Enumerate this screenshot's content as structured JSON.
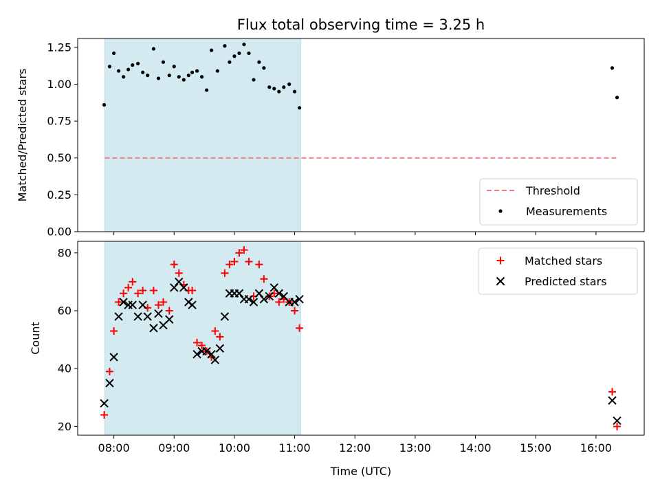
{
  "chart_data": [
    {
      "type": "scatter",
      "title": "Flux total observing time = 3.25 h",
      "xlabel": "",
      "ylabel": "Matched/Predicted stars",
      "ylim": [
        0,
        1.31
      ],
      "yticks": [
        "0.00",
        "0.25",
        "0.50",
        "0.75",
        "1.00",
        "1.25"
      ],
      "xlim_hours": [
        7.4,
        16.8
      ],
      "shaded_range_hours": [
        7.85,
        11.1
      ],
      "shade_color": "#d3eaf1",
      "legend_position": "lower-right",
      "threshold": {
        "name": "Threshold",
        "value": 0.5,
        "x_start_hours": 7.85,
        "x_end_hours": 16.35,
        "color": "#f08080"
      },
      "series": [
        {
          "name": "Measurements",
          "marker": "dot",
          "color": "#000000",
          "x_hours": [
            7.84,
            7.93,
            8.0,
            8.08,
            8.16,
            8.24,
            8.31,
            8.4,
            8.48,
            8.56,
            8.66,
            8.74,
            8.82,
            8.92,
            9.0,
            9.08,
            9.16,
            9.24,
            9.3,
            9.38,
            9.46,
            9.54,
            9.62,
            9.72,
            9.84,
            9.92,
            10.0,
            10.08,
            10.16,
            10.24,
            10.32,
            10.41,
            10.49,
            10.58,
            10.66,
            10.74,
            10.82,
            10.91,
            11.0,
            11.08,
            16.27,
            16.35
          ],
          "y": [
            0.86,
            1.12,
            1.21,
            1.09,
            1.05,
            1.1,
            1.13,
            1.14,
            1.08,
            1.06,
            1.24,
            1.04,
            1.15,
            1.06,
            1.12,
            1.05,
            1.03,
            1.06,
            1.08,
            1.09,
            1.05,
            0.96,
            1.23,
            1.09,
            1.26,
            1.15,
            1.19,
            1.21,
            1.27,
            1.21,
            1.03,
            1.15,
            1.11,
            0.98,
            0.97,
            0.95,
            0.98,
            1.0,
            0.95,
            0.84,
            1.11,
            0.91
          ]
        }
      ]
    },
    {
      "type": "scatter",
      "title": "",
      "xlabel": "Time (UTC)",
      "ylabel": "Count",
      "ylim": [
        17,
        84
      ],
      "yticks": [
        "20",
        "40",
        "60",
        "80"
      ],
      "xlim_hours": [
        7.4,
        16.8
      ],
      "xticks": [
        "08:00",
        "09:00",
        "10:00",
        "11:00",
        "12:00",
        "13:00",
        "14:00",
        "15:00",
        "16:00"
      ],
      "shaded_range_hours": [
        7.85,
        11.1
      ],
      "legend_position": "upper-right",
      "series": [
        {
          "name": "Matched stars",
          "marker": "plus",
          "color": "#ff0000",
          "x_hours": [
            7.84,
            7.93,
            8.0,
            8.08,
            8.16,
            8.24,
            8.31,
            8.4,
            8.48,
            8.56,
            8.66,
            8.74,
            8.82,
            8.92,
            9.0,
            9.08,
            9.16,
            9.24,
            9.3,
            9.38,
            9.46,
            9.54,
            9.62,
            9.68,
            9.76,
            9.84,
            9.92,
            10.0,
            10.08,
            10.16,
            10.24,
            10.32,
            10.41,
            10.49,
            10.58,
            10.66,
            10.74,
            10.82,
            10.91,
            11.0,
            11.08,
            16.27,
            16.35
          ],
          "y": [
            24,
            39,
            53,
            63,
            66,
            68,
            70,
            66,
            67,
            61,
            67,
            62,
            63,
            60,
            76,
            73,
            69,
            67,
            67,
            49,
            48,
            46,
            44,
            53,
            51,
            73,
            76,
            77,
            80,
            81,
            77,
            65,
            76,
            71,
            65,
            66,
            63,
            64,
            63,
            60,
            54,
            32,
            20
          ]
        },
        {
          "name": "Predicted stars",
          "marker": "x",
          "color": "#000000",
          "x_hours": [
            7.84,
            7.93,
            8.0,
            8.08,
            8.16,
            8.24,
            8.31,
            8.4,
            8.48,
            8.56,
            8.66,
            8.74,
            8.82,
            8.92,
            9.0,
            9.08,
            9.16,
            9.24,
            9.3,
            9.38,
            9.46,
            9.54,
            9.62,
            9.68,
            9.76,
            9.84,
            9.92,
            10.0,
            10.08,
            10.16,
            10.24,
            10.32,
            10.41,
            10.49,
            10.58,
            10.66,
            10.74,
            10.82,
            10.91,
            11.0,
            11.08,
            16.27,
            16.35
          ],
          "y": [
            28,
            35,
            44,
            58,
            63,
            62,
            62,
            58,
            62,
            58,
            54,
            59,
            55,
            57,
            68,
            70,
            68,
            63,
            62,
            45,
            46,
            46,
            45,
            43,
            47,
            58,
            66,
            66,
            66,
            64,
            64,
            63,
            66,
            64,
            65,
            68,
            66,
            65,
            63,
            63,
            64,
            29,
            22
          ]
        }
      ]
    }
  ]
}
